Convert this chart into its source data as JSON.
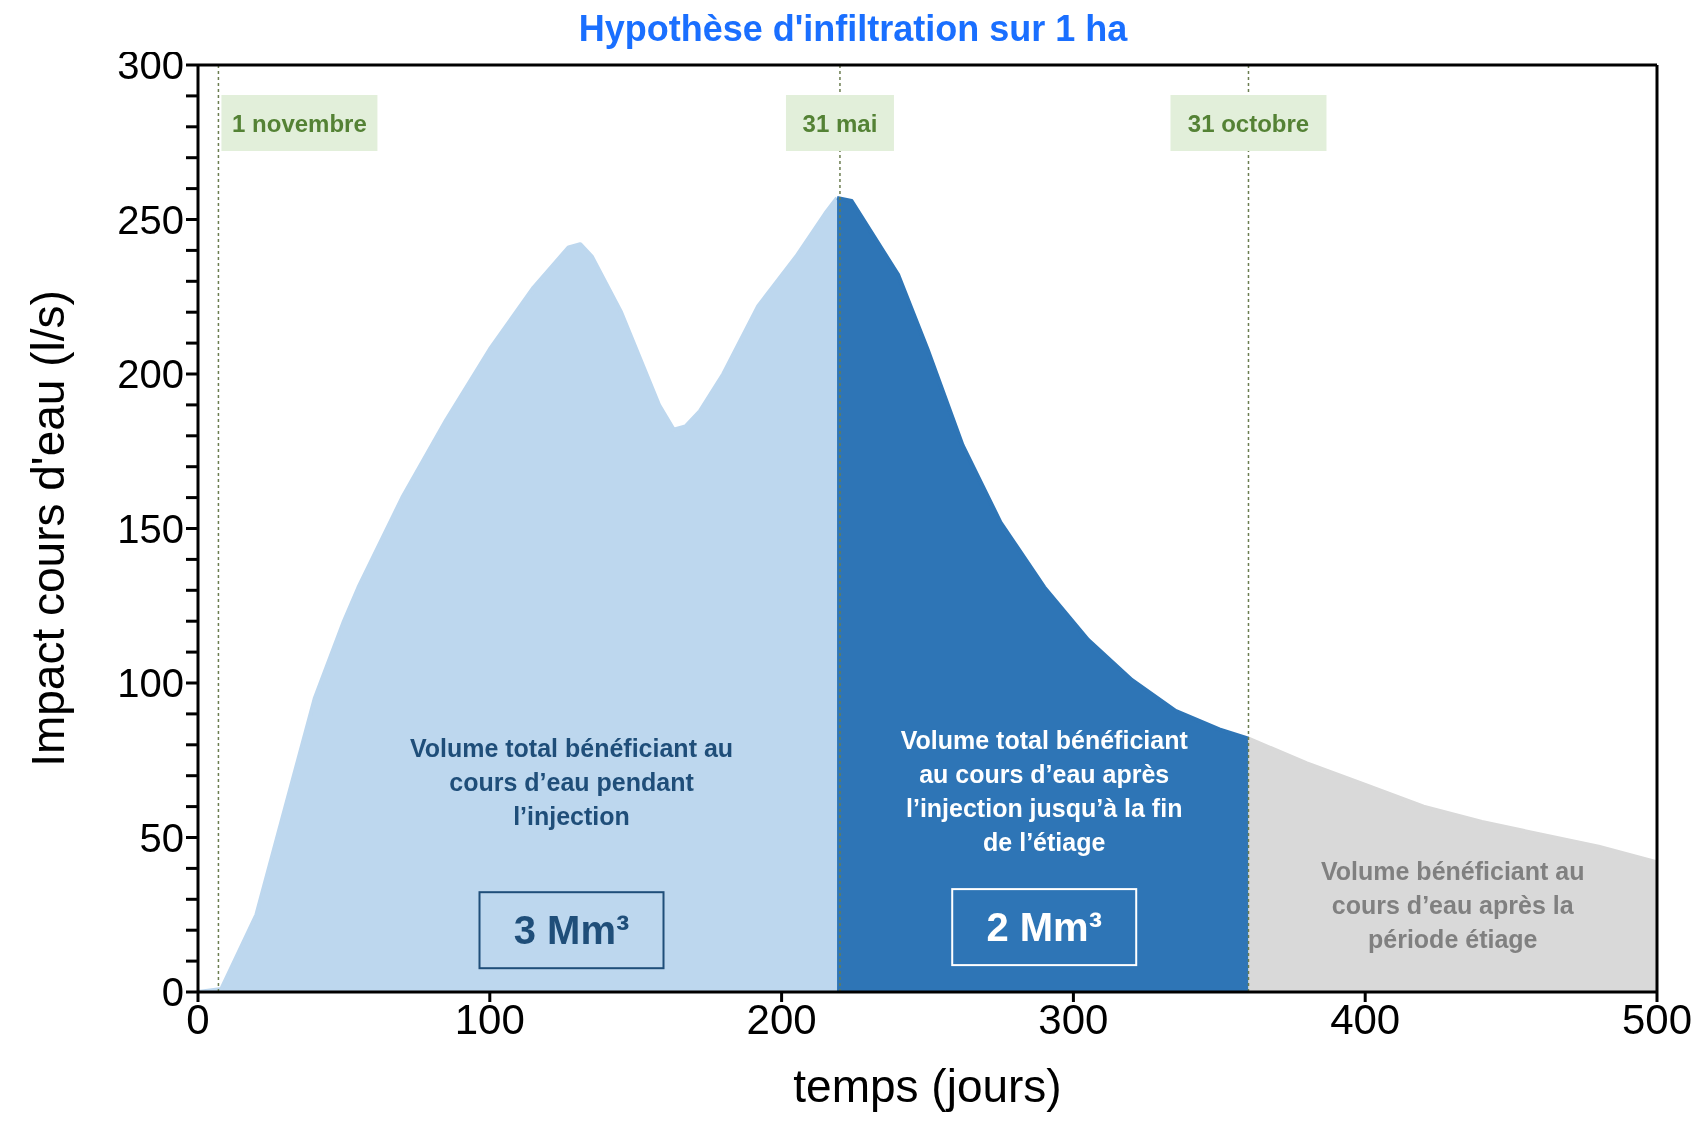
{
  "chart_data": {
    "type": "area",
    "title": "Hypothèse d'infiltration sur 1 ha",
    "xlabel": "temps (jours)",
    "ylabel": "Impact cours d'eau  (l/s)",
    "series": [
      {
        "x": [
          0,
          8,
          20,
          30,
          40,
          50,
          55,
          70,
          85,
          100,
          115,
          127,
          131,
          135,
          145,
          158,
          163,
          167,
          172,
          180,
          192,
          205,
          215,
          219
        ],
        "values": [
          0,
          1,
          25,
          60,
          95,
          120,
          131,
          160,
          185,
          208,
          228,
          241,
          242,
          238,
          220,
          190,
          182,
          183,
          188,
          200,
          222,
          238,
          252,
          257
        ],
        "color": "#bdd7ee"
      },
      {
        "x": [
          219,
          224,
          230,
          240,
          250,
          262,
          275,
          290,
          305,
          320,
          335,
          350,
          360
        ],
        "values": [
          257,
          256,
          247,
          232,
          208,
          177,
          152,
          131,
          114,
          101,
          91,
          85,
          82
        ],
        "color": "#2e75b6"
      },
      {
        "x": [
          360,
          380,
          400,
          420,
          440,
          460,
          480,
          500
        ],
        "values": [
          82,
          74,
          67,
          60,
          55,
          51,
          47,
          42
        ],
        "color": "#d9d9d9"
      }
    ],
    "xlim": [
      0,
      500
    ],
    "xticks": [
      0,
      100,
      200,
      300,
      400,
      500
    ],
    "ylim": [
      0,
      300
    ],
    "yticks": [
      0,
      {
        "value": 10,
        "label": null
      },
      {
        "value": 20,
        "label": null
      },
      {
        "value": 30,
        "label": null
      },
      {
        "value": 40,
        "label": null
      },
      50,
      {
        "value": 60,
        "label": null
      },
      {
        "value": 70,
        "label": null
      },
      {
        "value": 80,
        "label": null
      },
      {
        "value": 90,
        "label": null
      },
      100,
      {
        "value": 110,
        "label": null
      },
      {
        "value": 120,
        "label": null
      },
      {
        "value": 130,
        "label": null
      },
      {
        "value": 140,
        "label": null
      },
      150,
      {
        "value": 160,
        "label": null
      },
      {
        "value": 170,
        "label": null
      },
      {
        "value": 180,
        "label": null
      },
      {
        "value": 190,
        "label": null
      },
      200,
      {
        "value": 210,
        "label": null
      },
      {
        "value": 220,
        "label": null
      },
      {
        "value": 230,
        "label": null
      },
      {
        "value": 240,
        "label": null
      },
      250,
      {
        "value": 260,
        "label": null
      },
      {
        "value": 270,
        "label": null
      },
      {
        "value": 280,
        "label": null
      },
      {
        "value": 290,
        "label": null
      },
      300
    ],
    "ref_lines": [
      {
        "axis": "x",
        "value": 7,
        "label": "1 novembre",
        "line_style": "dotted"
      },
      {
        "axis": "x",
        "value": 220,
        "label": "31 mai",
        "line_style": "dotted"
      },
      {
        "axis": "x",
        "value": 360,
        "label": "31 octobre",
        "line_style": "dotted"
      }
    ],
    "annotations": [
      "Volume total bénéficiant au cours d’eau pendant l’injection",
      "3 Mm³",
      "Volume total bénéficiant au cours d’eau après l’injection jusqu’à la fin de l’étiage",
      "2 Mm³",
      "Volume bénéficiant au cours d’eau après la période étiage"
    ]
  }
}
